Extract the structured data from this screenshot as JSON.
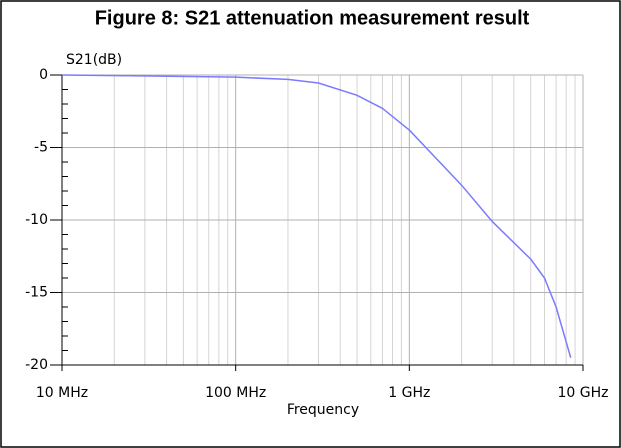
{
  "chart_data": {
    "type": "line",
    "title": "Figure 8: S21 attenuation measurement result",
    "y_label": "S21(dB)",
    "x_label": "Frequency",
    "log_x": true,
    "grid": true,
    "x": [
      10000000,
      25000000,
      100000000,
      200000000,
      300000000,
      500000000,
      700000000,
      1000000000,
      2000000000,
      3000000000,
      5000000000,
      6000000000,
      7000000000,
      8500000000
    ],
    "series": [
      {
        "name": "S21",
        "color": "#7b7bff",
        "values": [
          0,
          -0.05,
          -0.15,
          -0.3,
          -0.55,
          -1.4,
          -2.3,
          -3.8,
          -7.6,
          -10.1,
          -12.7,
          -14,
          -16,
          -19.5
        ]
      }
    ],
    "xlim": [
      10000000,
      10000000000
    ],
    "xticks": [
      {
        "value": 10000000,
        "label": "10 MHz"
      },
      {
        "value": 100000000,
        "label": "100 MHz"
      },
      {
        "value": 1000000000,
        "label": "1 GHz"
      },
      {
        "value": 10000000000,
        "label": "10 GHz"
      }
    ],
    "xminorticks": [
      20000000,
      30000000,
      40000000,
      50000000,
      60000000,
      70000000,
      80000000,
      90000000,
      200000000,
      300000000,
      400000000,
      500000000,
      600000000,
      700000000,
      800000000,
      900000000,
      2000000000,
      3000000000,
      4000000000,
      5000000000,
      6000000000,
      7000000000,
      8000000000,
      9000000000
    ],
    "ylim": [
      -20,
      0
    ],
    "yticks": [
      0,
      -5,
      -10,
      -15,
      -20
    ],
    "yminorticks": [
      -1,
      -2,
      -3,
      -4,
      -6,
      -7,
      -8,
      -9,
      -11,
      -12,
      -13,
      -14,
      -16,
      -17,
      -18,
      -19
    ]
  }
}
